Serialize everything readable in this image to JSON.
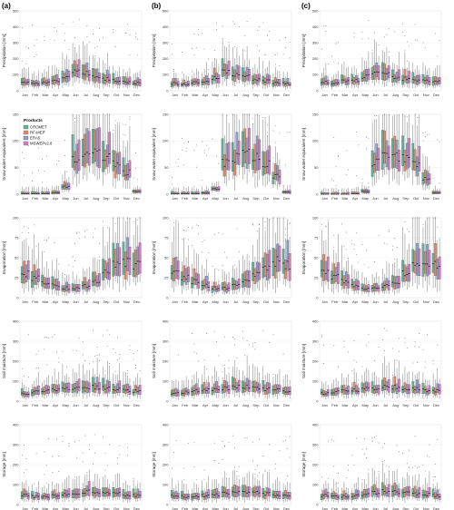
{
  "colors": {
    "CROMET": "#5fb39a",
    "RF-MEP": "#e0896a",
    "ERA5": "#8c9fc9",
    "MSWEPv2.8": "#d97bbd"
  },
  "panel_labels": [
    "(a)",
    "(b)",
    "(c)"
  ],
  "legend": {
    "title": "Products",
    "items": [
      "CROMET",
      "RF-MEP",
      "ERA5",
      "MSWEPv2.8"
    ]
  },
  "chart_data": {
    "type": "box",
    "categories": [
      "Jan",
      "Feb",
      "Mar",
      "Apr",
      "May",
      "Jun",
      "Jul",
      "Aug",
      "Sep",
      "Oct",
      "Nov",
      "Dec"
    ],
    "rows": [
      {
        "ylabel": "Precipitation [mm]",
        "ticks": [
          0,
          100,
          200,
          300,
          400,
          500
        ],
        "ylim": [
          0,
          500
        ],
        "medians": [
          [
            50,
            45,
            55,
            60,
            85,
            120,
            110,
            90,
            75,
            65,
            55,
            50
          ],
          [
            45,
            40,
            50,
            55,
            80,
            115,
            105,
            85,
            70,
            60,
            50,
            45
          ],
          [
            55,
            50,
            60,
            65,
            90,
            110,
            100,
            85,
            75,
            70,
            60,
            55
          ]
        ]
      },
      {
        "ylabel": "Snow water equivalent [mm]",
        "ticks": [
          0,
          50,
          100,
          150
        ],
        "ylim": [
          0,
          150
        ],
        "medians": [
          [
            1,
            1,
            1,
            3,
            15,
            70,
            75,
            75,
            70,
            60,
            40,
            5
          ],
          [
            1,
            1,
            1,
            2,
            10,
            60,
            70,
            75,
            70,
            55,
            35,
            4
          ],
          [
            0,
            0,
            0,
            1,
            5,
            60,
            70,
            70,
            65,
            55,
            30,
            3
          ]
        ]
      },
      {
        "ylabel": "Evaporation [mm]",
        "ticks": [
          0,
          25,
          50,
          75,
          100
        ],
        "ylim": [
          0,
          100
        ],
        "medians": [
          [
            30,
            25,
            20,
            15,
            12,
            12,
            15,
            20,
            30,
            40,
            45,
            40
          ],
          [
            30,
            25,
            20,
            15,
            12,
            12,
            15,
            20,
            30,
            40,
            45,
            40
          ],
          [
            30,
            25,
            20,
            15,
            12,
            12,
            15,
            20,
            30,
            40,
            45,
            40
          ]
        ]
      },
      {
        "ylabel": "Soil moisture [mm]",
        "ticks": [
          0,
          100,
          200,
          300,
          400
        ],
        "ylim": [
          0,
          400
        ],
        "medians": [
          [
            40,
            45,
            50,
            55,
            60,
            65,
            70,
            70,
            65,
            60,
            55,
            50
          ],
          [
            40,
            45,
            50,
            55,
            60,
            65,
            70,
            70,
            65,
            60,
            55,
            50
          ],
          [
            40,
            45,
            50,
            55,
            60,
            65,
            70,
            70,
            65,
            60,
            55,
            50
          ]
        ]
      },
      {
        "ylabel": "Storage [mm]",
        "ticks": [
          0,
          100,
          200,
          300,
          400
        ],
        "ylim": [
          0,
          400
        ],
        "medians": [
          [
            45,
            40,
            40,
            45,
            50,
            60,
            65,
            65,
            60,
            55,
            50,
            45
          ],
          [
            45,
            40,
            40,
            45,
            50,
            60,
            65,
            65,
            60,
            55,
            50,
            45
          ],
          [
            45,
            40,
            40,
            45,
            50,
            60,
            65,
            65,
            60,
            55,
            50,
            45
          ]
        ]
      }
    ]
  }
}
